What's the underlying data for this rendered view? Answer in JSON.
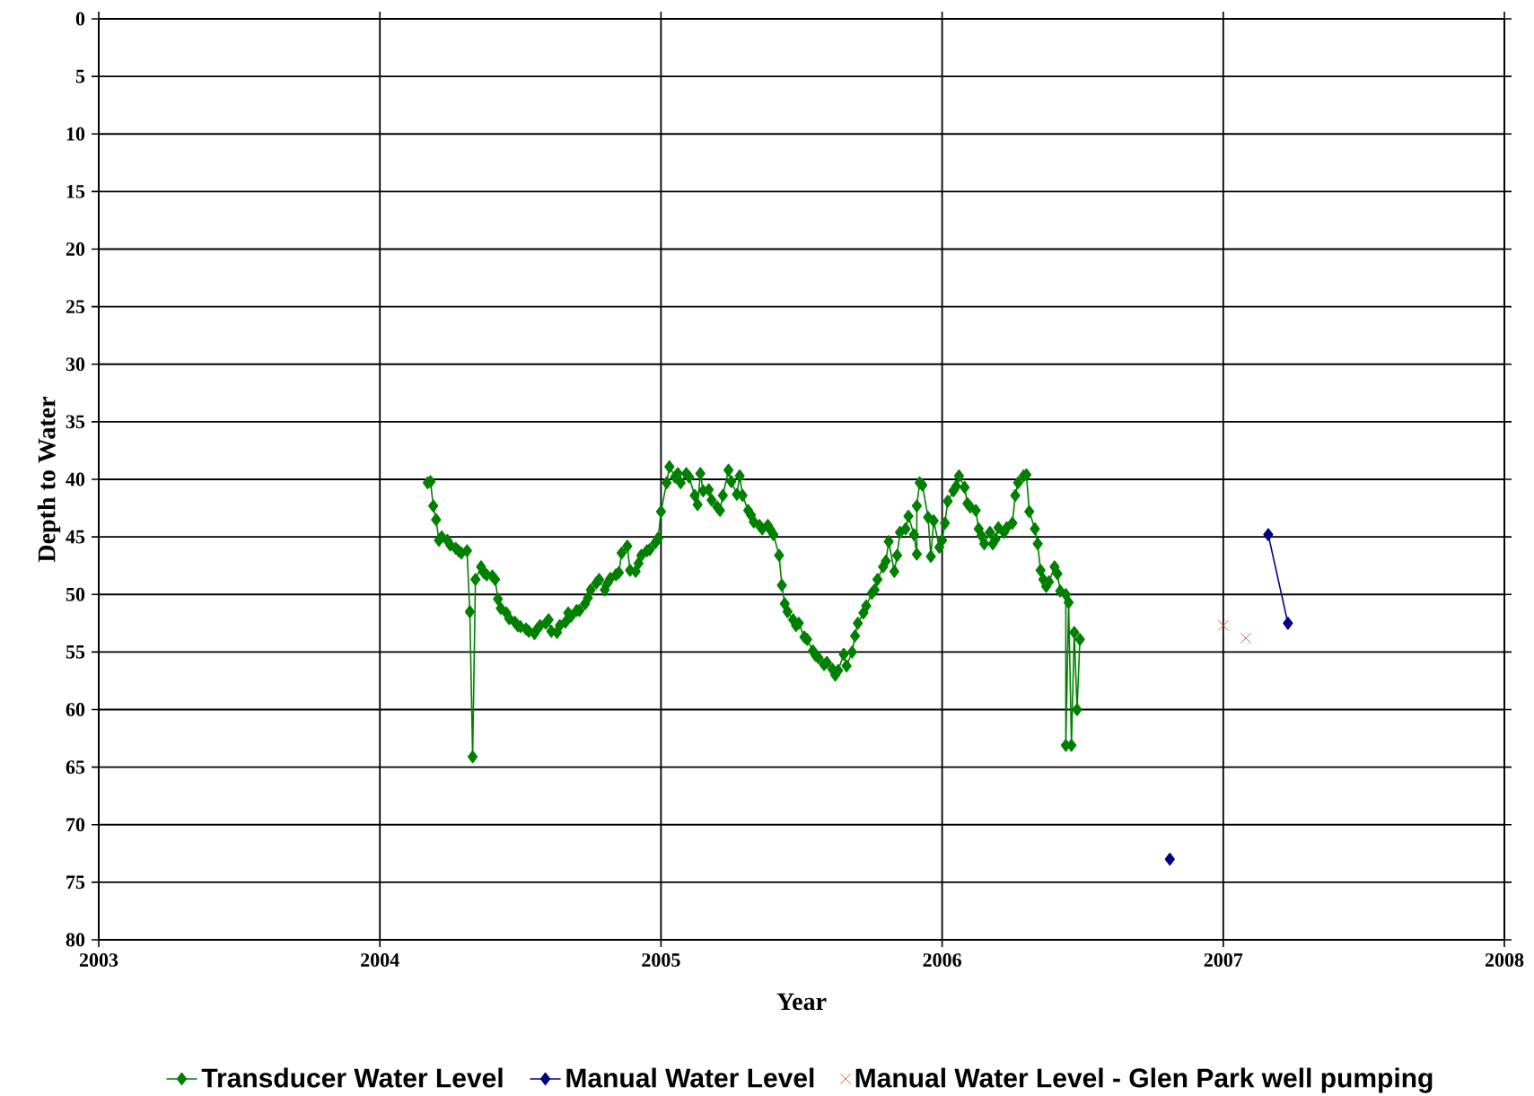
{
  "chart_data": {
    "type": "line",
    "xlabel": "Year",
    "ylabel": "Depth to Water",
    "xlim": [
      2003,
      2008
    ],
    "xticks": [
      2003,
      2004,
      2005,
      2006,
      2007,
      2008
    ],
    "ylim": [
      80,
      0
    ],
    "yticks": [
      0,
      5,
      10,
      15,
      20,
      25,
      30,
      35,
      40,
      45,
      50,
      55,
      60,
      65,
      70,
      75,
      80
    ],
    "grid": true,
    "legend": "bottom",
    "series": [
      {
        "name": "Transducer Water Level",
        "color": "#008000",
        "marker": "diamond",
        "x": [
          2004.17,
          2004.18,
          2004.19,
          2004.2,
          2004.21,
          2004.22,
          2004.24,
          2004.25,
          2004.27,
          2004.28,
          2004.29,
          2004.31,
          2004.32,
          2004.33,
          2004.34,
          2004.36,
          2004.37,
          2004.38,
          2004.4,
          2004.41,
          2004.42,
          2004.43,
          2004.45,
          2004.46,
          2004.48,
          2004.49,
          2004.5,
          2004.52,
          2004.53,
          2004.55,
          2004.56,
          2004.57,
          2004.59,
          2004.6,
          2004.61,
          2004.63,
          2004.64,
          2004.66,
          2004.67,
          2004.68,
          2004.7,
          2004.71,
          2004.73,
          2004.74,
          2004.75,
          2004.77,
          2004.78,
          2004.8,
          2004.81,
          2004.82,
          2004.84,
          2004.85,
          2004.86,
          2004.88,
          2004.89,
          2004.91,
          2004.92,
          2004.93,
          2004.95,
          2004.96,
          2004.98,
          2004.99,
          2005.0,
          2005.02,
          2005.03,
          2005.05,
          2005.06,
          2005.07,
          2005.09,
          2005.1,
          2005.12,
          2005.13,
          2005.14,
          2005.15,
          2005.17,
          2005.18,
          2005.2,
          2005.21,
          2005.22,
          2005.24,
          2005.25,
          2005.27,
          2005.28,
          2005.29,
          2005.31,
          2005.32,
          2005.33,
          2005.35,
          2005.36,
          2005.38,
          2005.39,
          2005.4,
          2005.42,
          2005.43,
          2005.44,
          2005.45,
          2005.47,
          2005.48,
          2005.49,
          2005.51,
          2005.52,
          2005.54,
          2005.55,
          2005.56,
          2005.58,
          2005.59,
          2005.61,
          2005.62,
          2005.63,
          2005.65,
          2005.66,
          2005.68,
          2005.69,
          2005.7,
          2005.72,
          2005.73,
          2005.75,
          2005.76,
          2005.77,
          2005.79,
          2005.8,
          2005.81,
          2005.83,
          2005.84,
          2005.85,
          2005.87,
          2005.88,
          2005.9,
          2005.91,
          2005.91,
          2005.92,
          2005.93,
          2005.95,
          2005.96,
          2005.97,
          2005.99,
          2006.0,
          2006.01,
          2006.02,
          2006.04,
          2006.05,
          2006.06,
          2006.08,
          2006.09,
          2006.1,
          2006.12,
          2006.13,
          2006.14,
          2006.15,
          2006.17,
          2006.18,
          2006.19,
          2006.2,
          2006.22,
          2006.23,
          2006.25,
          2006.26,
          2006.27,
          2006.29,
          2006.3,
          2006.31,
          2006.33,
          2006.34,
          2006.35,
          2006.36,
          2006.37,
          2006.38,
          2006.4,
          2006.41,
          2006.42,
          2006.44,
          2006.44,
          2006.45,
          2006.46,
          2006.47,
          2006.48,
          2006.49
        ],
        "values": [
          40.3,
          40.2,
          42.3,
          43.5,
          45.3,
          45.0,
          45.3,
          45.7,
          46.0,
          46.2,
          46.4,
          46.2,
          51.5,
          64.1,
          48.7,
          47.6,
          48.1,
          48.3,
          48.4,
          48.7,
          50.4,
          51.2,
          51.6,
          52.1,
          52.4,
          52.7,
          52.8,
          53.0,
          53.2,
          53.4,
          53.0,
          52.7,
          52.5,
          52.2,
          53.2,
          53.3,
          52.7,
          52.4,
          51.6,
          51.9,
          51.4,
          51.4,
          50.8,
          50.3,
          49.6,
          49.0,
          48.7,
          49.6,
          49.0,
          48.6,
          48.3,
          48.1,
          46.4,
          45.8,
          47.9,
          48.0,
          47.3,
          46.6,
          46.2,
          46.1,
          45.5,
          45.1,
          42.8,
          40.3,
          38.9,
          39.8,
          39.5,
          40.3,
          39.5,
          39.8,
          41.4,
          42.2,
          39.5,
          41.0,
          40.9,
          41.8,
          42.4,
          42.7,
          41.4,
          39.2,
          40.2,
          41.3,
          39.7,
          41.4,
          42.7,
          43.1,
          43.7,
          44.0,
          44.3,
          44.0,
          44.4,
          44.8,
          46.6,
          49.2,
          50.8,
          51.5,
          52.2,
          52.7,
          52.5,
          53.7,
          53.9,
          54.9,
          55.3,
          55.5,
          56.1,
          55.9,
          56.5,
          57.0,
          56.6,
          55.2,
          56.2,
          55.0,
          53.6,
          52.5,
          51.6,
          51.0,
          49.9,
          49.6,
          48.7,
          47.6,
          47.1,
          45.4,
          48.0,
          46.6,
          44.6,
          44.3,
          43.2,
          44.8,
          46.5,
          42.3,
          40.3,
          40.5,
          43.3,
          46.7,
          43.6,
          45.9,
          45.3,
          43.8,
          41.9,
          41.0,
          40.6,
          39.7,
          40.7,
          42.1,
          42.4,
          42.7,
          44.3,
          44.9,
          45.6,
          44.6,
          45.6,
          45.2,
          44.2,
          44.6,
          44.2,
          43.8,
          41.4,
          40.3,
          39.7,
          39.6,
          42.8,
          44.3,
          45.6,
          47.9,
          48.7,
          49.3,
          48.9,
          47.6,
          48.2,
          49.7,
          50.0,
          63.1,
          50.7,
          63.1,
          53.3,
          60.0,
          53.9
        ]
      },
      {
        "name": "Manual Water Level",
        "color": "#000080",
        "marker": "diamond",
        "x": [
          2006.81,
          null,
          2007.16,
          2007.23
        ],
        "values": [
          73.0,
          null,
          44.8,
          52.5
        ]
      },
      {
        "name": "Manual Water Level - Glen Park well pumping",
        "type": "scatter",
        "color": "#b8460b",
        "marker": "cross",
        "x": [
          2007.0,
          2007.08
        ],
        "values": [
          52.7,
          53.8
        ]
      }
    ]
  }
}
